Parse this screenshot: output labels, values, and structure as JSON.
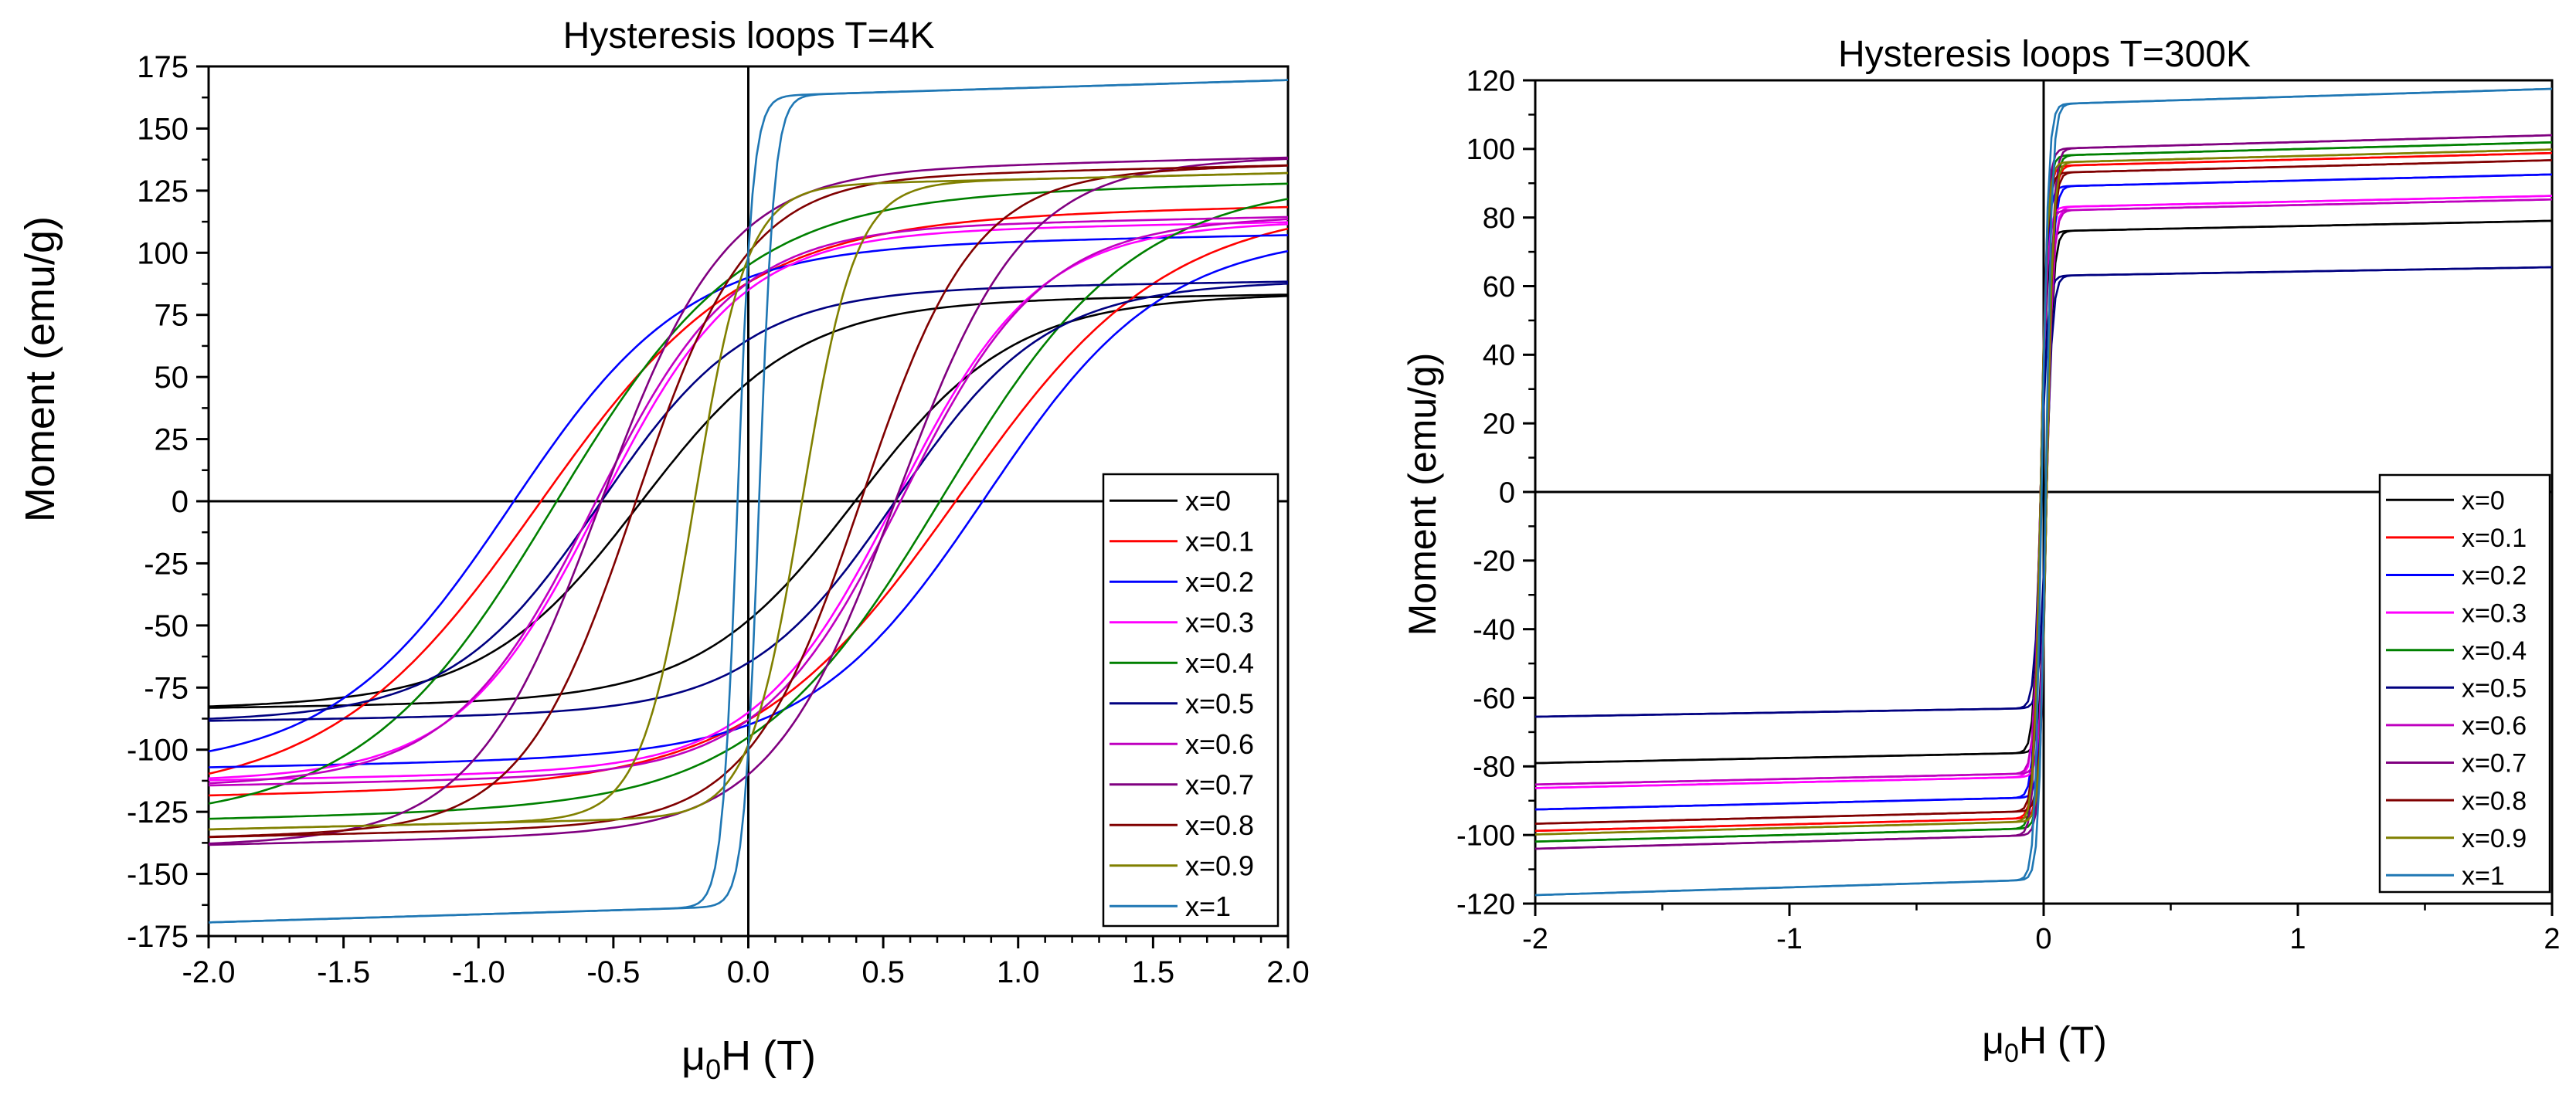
{
  "chart_data": [
    {
      "type": "line",
      "title": "Hysteresis loops T=4K",
      "xlabel_base": "μ",
      "xlabel_sub": "0",
      "xlabel_rest": "H (T)",
      "ylabel": "Moment (emu/g)",
      "xlim": [
        -2.0,
        2.0
      ],
      "ylim": [
        -175,
        175
      ],
      "xticks": [
        -2.0,
        -1.5,
        -1.0,
        -0.5,
        0.0,
        0.5,
        1.0,
        1.5,
        2.0
      ],
      "xtick_labels": [
        "-2.0",
        "-1.5",
        "-1.0",
        "-0.5",
        "0.0",
        "0.5",
        "1.0",
        "1.5",
        "2.0"
      ],
      "yticks": [
        175,
        150,
        125,
        100,
        75,
        50,
        25,
        0,
        -25,
        -50,
        -75,
        -100,
        -125,
        -150,
        -175
      ],
      "ytick_labels": [
        "175",
        "150",
        "125",
        "100",
        "75",
        "50",
        "25",
        "0",
        "-25",
        "-50",
        "-75",
        "-100",
        "-125",
        "-150",
        "-175"
      ],
      "legend_position": "bottom-right",
      "series": [
        {
          "name": "x=0",
          "color": "#000000",
          "Ms": 80,
          "Hc": 0.4,
          "Mr": 48
        },
        {
          "name": "x=0.1",
          "color": "#ff0000",
          "Ms": 114,
          "Hc": 0.78,
          "Mr": 88
        },
        {
          "name": "x=0.2",
          "color": "#0000ff",
          "Ms": 103,
          "Hc": 0.88,
          "Mr": 90
        },
        {
          "name": "x=0.3",
          "color": "#ff00ff",
          "Ms": 108,
          "Hc": 0.55,
          "Mr": 85
        },
        {
          "name": "x=0.4",
          "color": "#008000",
          "Ms": 123,
          "Hc": 0.72,
          "Mr": 95
        },
        {
          "name": "x=0.5",
          "color": "#000080",
          "Ms": 85,
          "Hc": 0.55,
          "Mr": 65
        },
        {
          "name": "x=0.6",
          "color": "#bf00bf",
          "Ms": 110,
          "Hc": 0.57,
          "Mr": 88
        },
        {
          "name": "x=0.7",
          "color": "#800080",
          "Ms": 133,
          "Hc": 0.55,
          "Mr": 110
        },
        {
          "name": "x=0.8",
          "color": "#800000",
          "Ms": 130,
          "Hc": 0.42,
          "Mr": 100
        },
        {
          "name": "x=0.9",
          "color": "#808000",
          "Ms": 127,
          "Hc": 0.2,
          "Mr": 98
        },
        {
          "name": "x=1",
          "color": "#1f77b4",
          "Ms": 163,
          "Hc": 0.04,
          "Mr": 100
        }
      ]
    },
    {
      "type": "line",
      "title": "Hysteresis loops T=300K",
      "xlabel_base": "μ",
      "xlabel_sub": "0",
      "xlabel_rest": "H (T)",
      "ylabel": "Moment (emu/g)",
      "xlim": [
        -2,
        2
      ],
      "ylim": [
        -120,
        120
      ],
      "xticks": [
        -2,
        -1,
        0,
        1,
        2
      ],
      "xtick_labels": [
        "-2",
        "-1",
        "0",
        "1",
        "2"
      ],
      "yticks": [
        120,
        100,
        80,
        60,
        40,
        20,
        0,
        -20,
        -40,
        -60,
        -80,
        -100,
        -120
      ],
      "ytick_labels": [
        "120",
        "100",
        "80",
        "60",
        "40",
        "20",
        "0",
        "-20",
        "-40",
        "-60",
        "-80",
        "-100",
        "-120"
      ],
      "legend_position": "bottom-right",
      "series": [
        {
          "name": "x=0",
          "color": "#000000",
          "Ms": 76,
          "Hc": 0.012
        },
        {
          "name": "x=0.1",
          "color": "#ff0000",
          "Ms": 95,
          "Hc": 0.012
        },
        {
          "name": "x=0.2",
          "color": "#0000ff",
          "Ms": 89,
          "Hc": 0.012
        },
        {
          "name": "x=0.3",
          "color": "#ff00ff",
          "Ms": 83,
          "Hc": 0.012
        },
        {
          "name": "x=0.4",
          "color": "#008000",
          "Ms": 98,
          "Hc": 0.012
        },
        {
          "name": "x=0.5",
          "color": "#000080",
          "Ms": 63,
          "Hc": 0.01
        },
        {
          "name": "x=0.6",
          "color": "#bf00bf",
          "Ms": 82,
          "Hc": 0.012
        },
        {
          "name": "x=0.7",
          "color": "#800080",
          "Ms": 100,
          "Hc": 0.012
        },
        {
          "name": "x=0.8",
          "color": "#800000",
          "Ms": 93,
          "Hc": 0.012
        },
        {
          "name": "x=0.9",
          "color": "#808000",
          "Ms": 96,
          "Hc": 0.012
        },
        {
          "name": "x=1",
          "color": "#1f77b4",
          "Ms": 113,
          "Hc": 0.008
        }
      ]
    }
  ]
}
